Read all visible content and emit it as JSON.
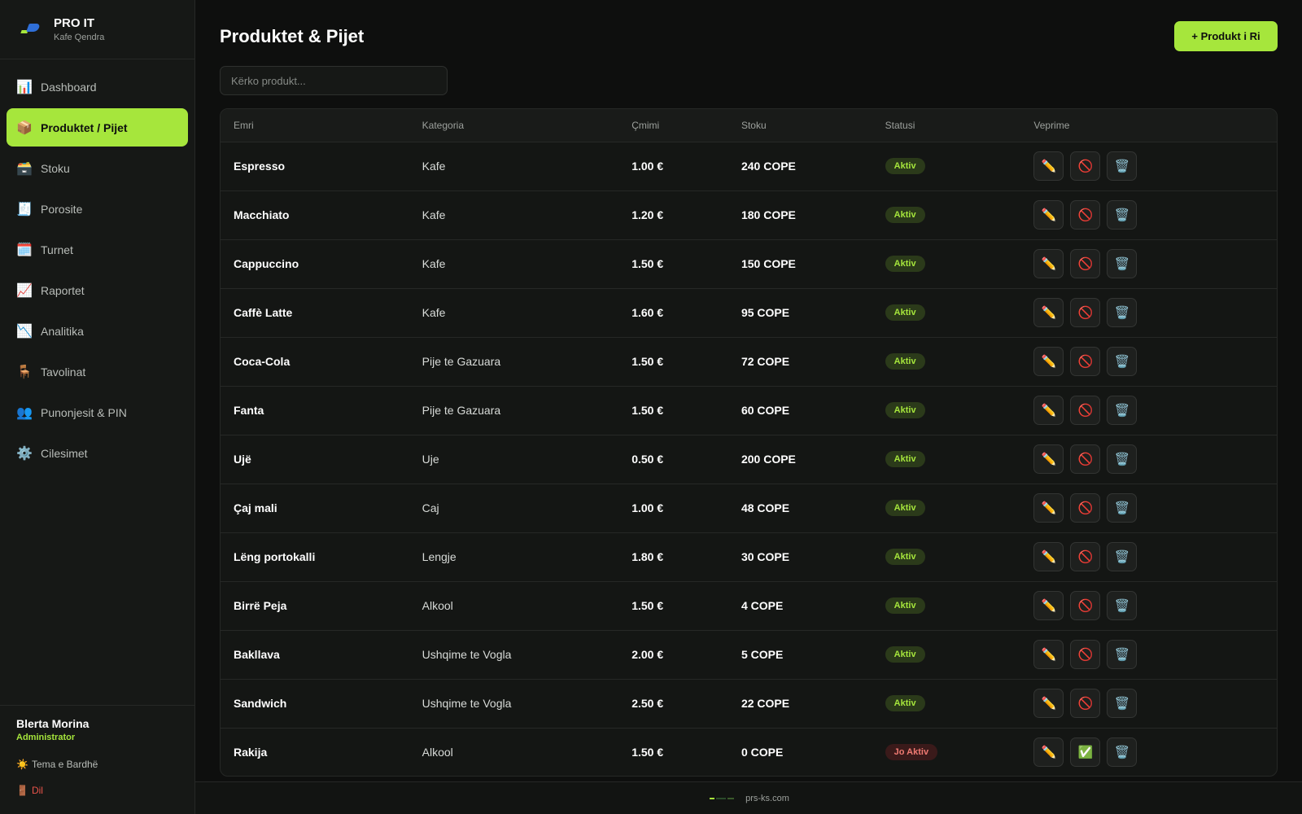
{
  "brand": {
    "name": "PRO IT",
    "subtitle": "Kafe Qendra"
  },
  "nav": [
    {
      "id": "dashboard",
      "label": "Dashboard",
      "icon": "📊",
      "active": false
    },
    {
      "id": "produktet",
      "label": "Produktet / Pijet",
      "icon": "📦",
      "active": true
    },
    {
      "id": "stoku",
      "label": "Stoku",
      "icon": "🗃️",
      "active": false
    },
    {
      "id": "porosite",
      "label": "Porosite",
      "icon": "🧾",
      "active": false
    },
    {
      "id": "turnet",
      "label": "Turnet",
      "icon": "🗓️",
      "active": false
    },
    {
      "id": "raportet",
      "label": "Raportet",
      "icon": "📈",
      "active": false
    },
    {
      "id": "analitika",
      "label": "Analitika",
      "icon": "📉",
      "active": false
    },
    {
      "id": "tavolinat",
      "label": "Tavolinat",
      "icon": "🪑",
      "active": false
    },
    {
      "id": "punonjesit",
      "label": "Punonjesit & PIN",
      "icon": "👥",
      "active": false
    },
    {
      "id": "cilesimet",
      "label": "Cilesimet",
      "icon": "⚙️",
      "active": false
    }
  ],
  "user": {
    "name": "Blerta Morina",
    "role": "Administrator"
  },
  "theme_toggle": {
    "icon": "☀️",
    "label": "Tema e Bardhë"
  },
  "logout": {
    "icon": "🚪",
    "label": "Dil"
  },
  "header": {
    "title": "Produktet & Pijet",
    "add_button": "+ Produkt i Ri"
  },
  "search": {
    "placeholder": "Kërko produkt...",
    "value": ""
  },
  "table": {
    "columns": [
      "Emri",
      "Kategoria",
      "Çmimi",
      "Stoku",
      "Statusi",
      "Veprime"
    ],
    "rows": [
      {
        "name": "Espresso",
        "category": "Kafe",
        "price": "1.00 €",
        "stock": "240 COPE",
        "status": "Aktiv",
        "active": true
      },
      {
        "name": "Macchiato",
        "category": "Kafe",
        "price": "1.20 €",
        "stock": "180 COPE",
        "status": "Aktiv",
        "active": true
      },
      {
        "name": "Cappuccino",
        "category": "Kafe",
        "price": "1.50 €",
        "stock": "150 COPE",
        "status": "Aktiv",
        "active": true
      },
      {
        "name": "Caffè Latte",
        "category": "Kafe",
        "price": "1.60 €",
        "stock": "95 COPE",
        "status": "Aktiv",
        "active": true
      },
      {
        "name": "Coca-Cola",
        "category": "Pije te Gazuara",
        "price": "1.50 €",
        "stock": "72 COPE",
        "status": "Aktiv",
        "active": true
      },
      {
        "name": "Fanta",
        "category": "Pije te Gazuara",
        "price": "1.50 €",
        "stock": "60 COPE",
        "status": "Aktiv",
        "active": true
      },
      {
        "name": "Ujë",
        "category": "Uje",
        "price": "0.50 €",
        "stock": "200 COPE",
        "status": "Aktiv",
        "active": true
      },
      {
        "name": "Çaj mali",
        "category": "Caj",
        "price": "1.00 €",
        "stock": "48 COPE",
        "status": "Aktiv",
        "active": true
      },
      {
        "name": "Lëng portokalli",
        "category": "Lengje",
        "price": "1.80 €",
        "stock": "30 COPE",
        "status": "Aktiv",
        "active": true
      },
      {
        "name": "Birrë Peja",
        "category": "Alkool",
        "price": "1.50 €",
        "stock": "4 COPE",
        "status": "Aktiv",
        "active": true
      },
      {
        "name": "Bakllava",
        "category": "Ushqime te Vogla",
        "price": "2.00 €",
        "stock": "5 COPE",
        "status": "Aktiv",
        "active": true
      },
      {
        "name": "Sandwich",
        "category": "Ushqime te Vogla",
        "price": "2.50 €",
        "stock": "22 COPE",
        "status": "Aktiv",
        "active": true
      },
      {
        "name": "Rakija",
        "category": "Alkool",
        "price": "1.50 €",
        "stock": "0 COPE",
        "status": "Jo Aktiv",
        "active": false
      }
    ],
    "action_icons": {
      "edit": "✏️",
      "deactivate": "🚫",
      "activate": "✅",
      "delete": "🗑️"
    }
  },
  "footer": {
    "text": "prs-ks.com"
  },
  "colors": {
    "accent": "#a6e63c",
    "brand_blue": "#2f6fd8",
    "danger": "#e8534a"
  }
}
